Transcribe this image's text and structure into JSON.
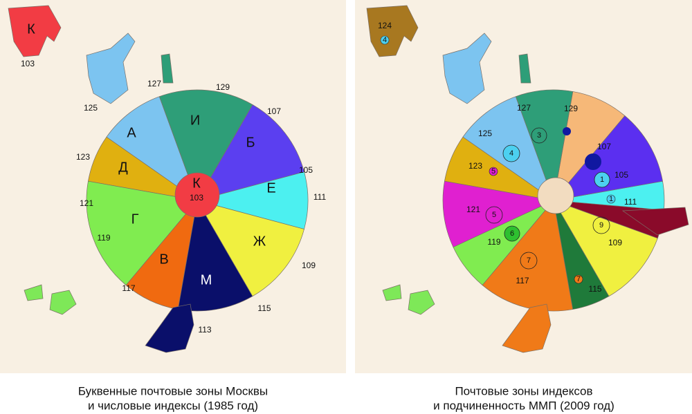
{
  "left_map": {
    "outer_zone": "К",
    "outer_index": "103",
    "labels": [
      "127",
      "129",
      "107",
      "125",
      "А",
      "И",
      "Б",
      "123",
      "Д",
      "105",
      "К",
      "103",
      "Е",
      "111",
      "121",
      "Г",
      "119",
      "В",
      "М",
      "Ж",
      "109",
      "117",
      "115",
      "113"
    ],
    "caption": [
      "Буквенные почтовые зоны Москвы",
      "и числовые индексы (1985 год)"
    ]
  },
  "right_map": {
    "outer_index": "124",
    "outer_badge": "4",
    "labels": [
      "127",
      "129",
      "3",
      "125",
      "4",
      "107",
      "123",
      "5",
      "105",
      "1",
      "121",
      "5",
      "111",
      "1",
      "9",
      "119",
      "6",
      "109",
      "7",
      "117",
      "7",
      "115"
    ],
    "caption": [
      "Почтовые зоны индексов",
      "и подчиненность ММП (2009 год)"
    ]
  }
}
